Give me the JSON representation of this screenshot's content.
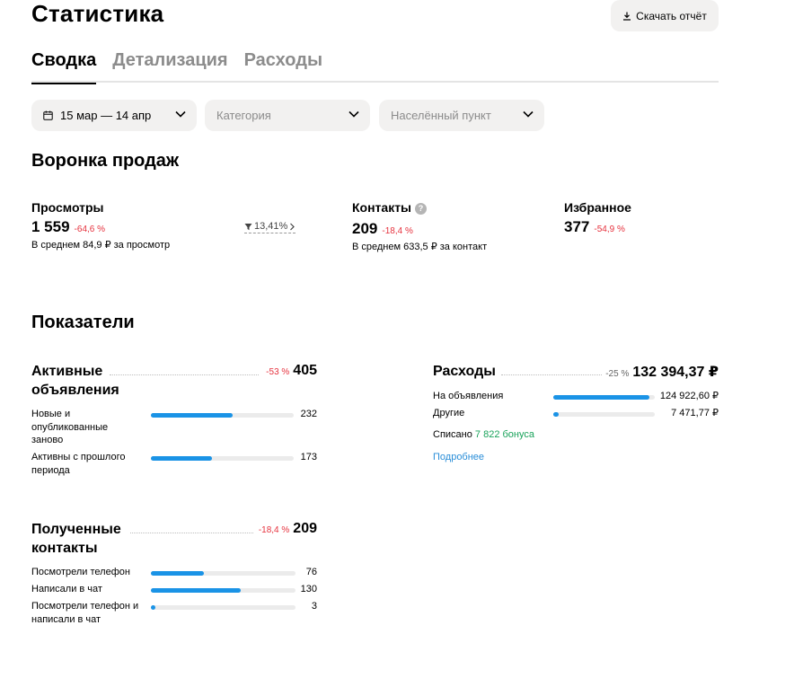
{
  "header": {
    "title": "Статистика",
    "download_label": "Скачать отчёт"
  },
  "tabs": [
    {
      "label": "Сводка",
      "active": true
    },
    {
      "label": "Детализация",
      "active": false
    },
    {
      "label": "Расходы",
      "active": false
    }
  ],
  "filters": {
    "date": "15 мар — 14 апр",
    "category_placeholder": "Категория",
    "location_placeholder": "Населённый пункт"
  },
  "funnel": {
    "title": "Воронка продаж",
    "views": {
      "label": "Просмотры",
      "value": "1 559",
      "change": "-64,6 %",
      "sub": "В среднем 84,9 ₽ за просмотр"
    },
    "conversion": "13,41%",
    "contacts": {
      "label": "Контакты",
      "help": "?",
      "value": "209",
      "change": "-18,4 %",
      "sub": "В среднем 633,5 ₽ за контакт"
    },
    "favorites": {
      "label": "Избранное",
      "value": "377",
      "change": "-54,9 %"
    }
  },
  "indicators": {
    "title": "Показатели",
    "active_ads": {
      "title": "Активные объявления",
      "change": "-53 %",
      "total": "405",
      "rows": [
        {
          "label": "Новые и опубликованные заново",
          "value": "232",
          "fraction": 0.573
        },
        {
          "label": "Активны с прошлого периода",
          "value": "173",
          "fraction": 0.427
        }
      ]
    },
    "expenses": {
      "title": "Расходы",
      "change": "-25 %",
      "total": "132 394,37 ₽",
      "rows": [
        {
          "label": "На объявления",
          "value": "124 922,60 ₽",
          "fraction": 0.944
        },
        {
          "label": "Другие",
          "value": "7 471,77 ₽",
          "fraction": 0.056
        }
      ],
      "written_off_prefix": "Списано",
      "written_off_bonus": "7 822 бонуса",
      "more_link": "Подробнее"
    },
    "received_contacts": {
      "title": "Полученные контакты",
      "change": "-18,4 %",
      "total": "209",
      "rows": [
        {
          "label": "Посмотрели телефон",
          "value": "76",
          "fraction": 0.364
        },
        {
          "label": "Написали в чат",
          "value": "130",
          "fraction": 0.622
        },
        {
          "label": "Посмотрели телефон и написали в чат",
          "value": "3",
          "fraction": 0.014
        }
      ]
    }
  },
  "colors": {
    "accent_bar": "#1a93e6",
    "negative": "#e6323e",
    "bonus": "#1aa35b",
    "link": "#2a8ed8"
  }
}
